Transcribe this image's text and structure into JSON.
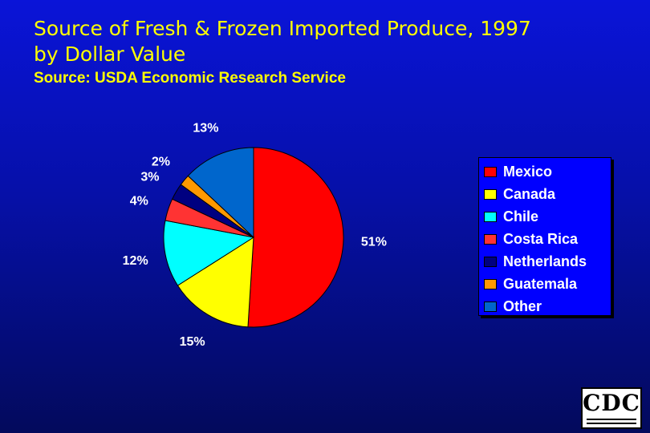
{
  "slide": {
    "title_line1": "Source of Fresh & Frozen Imported Produce, 1997",
    "title_line2": "by Dollar Value",
    "subtitle": "Source: USDA Economic Research Service"
  },
  "chart_data": {
    "type": "pie",
    "title": "",
    "legend_position": "right",
    "slices": [
      {
        "name": "Mexico",
        "value": 51,
        "label": "51%",
        "color": "#ff0000"
      },
      {
        "name": "Canada",
        "value": 15,
        "label": "15%",
        "color": "#ffff00"
      },
      {
        "name": "Chile",
        "value": 12,
        "label": "12%",
        "color": "#00ffff"
      },
      {
        "name": "Costa Rica",
        "value": 4,
        "label": "4%",
        "color": "#ff3333"
      },
      {
        "name": "Netherlands",
        "value": 3,
        "label": "3%",
        "color": "#000080"
      },
      {
        "name": "Guatemala",
        "value": 2,
        "label": "2%",
        "color": "#ff9900"
      },
      {
        "name": "Other",
        "value": 13,
        "label": "13%",
        "color": "#0066cc"
      }
    ]
  },
  "logo": {
    "text": "CDC"
  }
}
